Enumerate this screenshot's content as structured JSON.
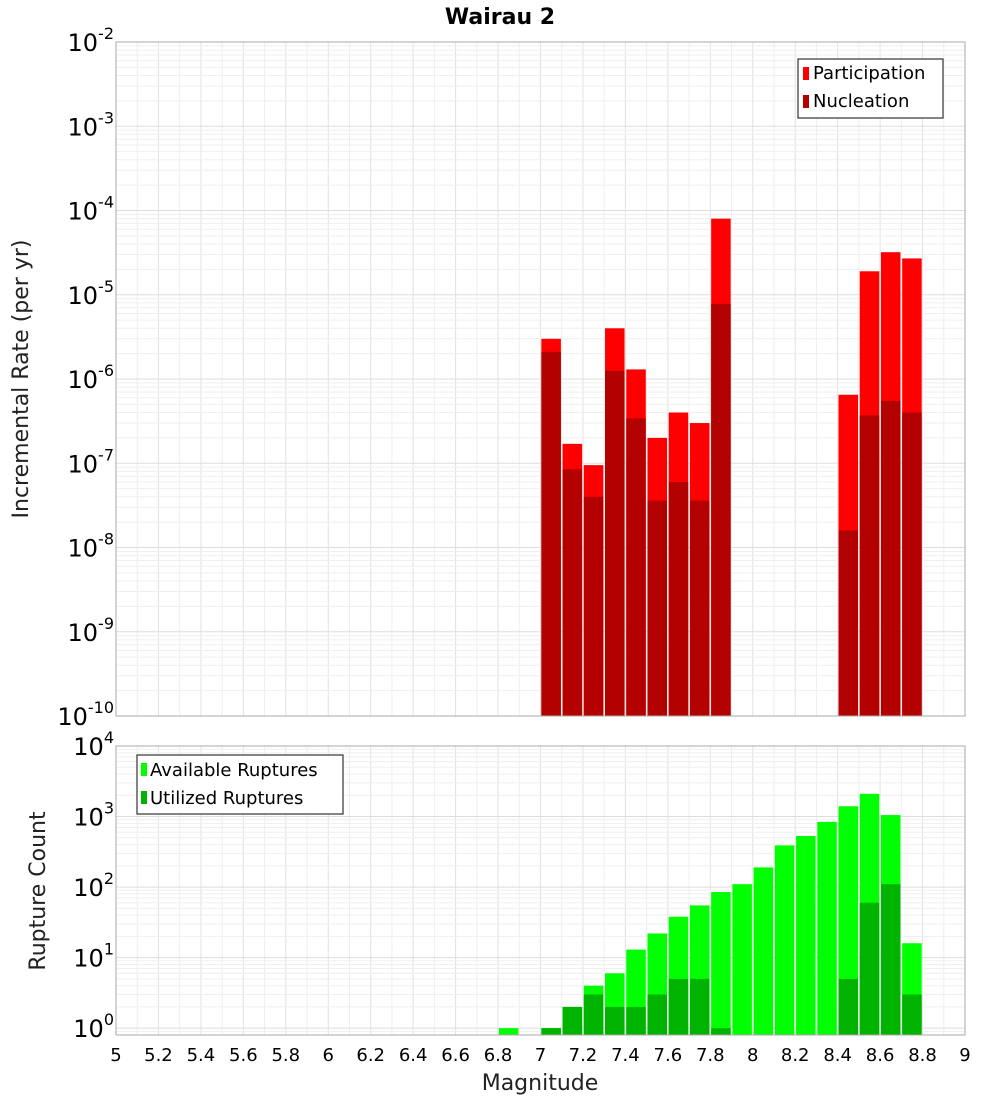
{
  "chart_data": [
    {
      "type": "bar",
      "title": "Wairau 2",
      "ylabel": "Incremental Rate (per yr)",
      "xlabel": "",
      "y_scale": "log",
      "ylim": [
        1e-10,
        0.01
      ],
      "xlim": [
        5,
        9
      ],
      "y_ticks": [
        {
          "base": "10",
          "exp": "-10"
        },
        {
          "base": "10",
          "exp": "-9"
        },
        {
          "base": "10",
          "exp": "-8"
        },
        {
          "base": "10",
          "exp": "-7"
        },
        {
          "base": "10",
          "exp": "-6"
        },
        {
          "base": "10",
          "exp": "-5"
        },
        {
          "base": "10",
          "exp": "-4"
        },
        {
          "base": "10",
          "exp": "-3"
        },
        {
          "base": "10",
          "exp": "-2"
        }
      ],
      "legend_position": "top-right",
      "grid": true,
      "series": [
        {
          "name": "Participation",
          "color": "#ff0000",
          "x": [
            7.05,
            7.15,
            7.25,
            7.35,
            7.45,
            7.55,
            7.65,
            7.75,
            7.85,
            8.45,
            8.55,
            8.65,
            8.75
          ],
          "values": [
            3e-06,
            1.7e-07,
            9.5e-08,
            4e-06,
            1.3e-06,
            2e-07,
            4e-07,
            3e-07,
            8e-05,
            6.5e-07,
            1.9e-05,
            3.2e-05,
            2.7e-05
          ]
        },
        {
          "name": "Nucleation",
          "color": "#b30000",
          "x": [
            7.05,
            7.15,
            7.25,
            7.35,
            7.45,
            7.55,
            7.65,
            7.75,
            7.85,
            8.45,
            8.55,
            8.65,
            8.75
          ],
          "values": [
            2.1e-06,
            8.5e-08,
            4e-08,
            1.25e-06,
            3.4e-07,
            3.6e-08,
            6e-08,
            3.6e-08,
            7.8e-06,
            1.6e-08,
            3.7e-07,
            5.5e-07,
            4e-07
          ]
        }
      ]
    },
    {
      "type": "bar",
      "title": "",
      "ylabel": "Rupture Count",
      "xlabel": "Magnitude",
      "y_scale": "log",
      "ylim": [
        0.8,
        10000
      ],
      "xlim": [
        5,
        9
      ],
      "y_ticks": [
        {
          "base": "10",
          "exp": "0"
        },
        {
          "base": "10",
          "exp": "1"
        },
        {
          "base": "10",
          "exp": "2"
        },
        {
          "base": "10",
          "exp": "3"
        },
        {
          "base": "10",
          "exp": "4"
        }
      ],
      "x_tick_labels": [
        "5",
        "5.2",
        "5.4",
        "5.6",
        "5.8",
        "6",
        "6.2",
        "6.4",
        "6.6",
        "6.8",
        "7",
        "7.2",
        "7.4",
        "7.6",
        "7.8",
        "8",
        "8.2",
        "8.4",
        "8.6",
        "8.8",
        "9"
      ],
      "legend_position": "top-left",
      "grid": true,
      "series": [
        {
          "name": "Available Ruptures",
          "color": "#00ff00",
          "x": [
            6.85,
            6.95,
            7.05,
            7.15,
            7.25,
            7.35,
            7.45,
            7.55,
            7.65,
            7.75,
            7.85,
            7.95,
            8.05,
            8.15,
            8.25,
            8.35,
            8.45,
            8.55,
            8.65,
            8.75
          ],
          "values": [
            1,
            0,
            1,
            2,
            4,
            6,
            13,
            22,
            38,
            55,
            85,
            110,
            190,
            390,
            530,
            840,
            1400,
            2100,
            1050,
            16
          ]
        },
        {
          "name": "Utilized Ruptures",
          "color": "#00b300",
          "x": [
            6.85,
            6.95,
            7.05,
            7.15,
            7.25,
            7.35,
            7.45,
            7.55,
            7.65,
            7.75,
            7.85,
            7.95,
            8.05,
            8.15,
            8.25,
            8.35,
            8.45,
            8.55,
            8.65,
            8.75
          ],
          "values": [
            0,
            0,
            1,
            2,
            3,
            2,
            2,
            3,
            5,
            5,
            1,
            0,
            0,
            0,
            0,
            0,
            5,
            60,
            110,
            3
          ]
        }
      ]
    }
  ]
}
